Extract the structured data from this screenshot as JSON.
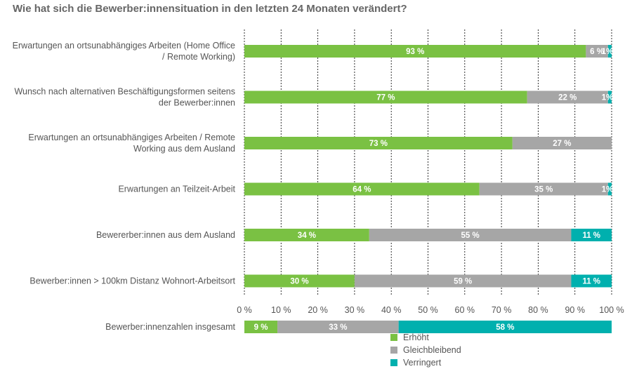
{
  "chart_data": {
    "type": "bar",
    "orientation": "horizontal",
    "stacked": true,
    "title": "Wie hat sich die Bewerber:innensituation in den letzten 24 Monaten verändert?",
    "categories": [
      [
        "Erwartungen an ortsunabhängiges Arbeiten (Home Office",
        "/ Remote Working)"
      ],
      [
        "Wunsch nach alternativen Beschäftigungsformen seitens",
        "der Bewerber:innen"
      ],
      [
        "Erwartungen an ortsunabhängiges Arbeiten / Remote",
        "Working aus dem Ausland"
      ],
      [
        "Erwartungen an Teilzeit-Arbeit"
      ],
      [
        "Bewererber:innen aus dem Ausland"
      ],
      [
        "Bewerber:innen > 100km Distanz Wohnort-Arbeitsort"
      ],
      [
        "Bewerber:innenzahlen insgesamt"
      ]
    ],
    "series": [
      {
        "name": "Erhöht",
        "color": "#7ac143",
        "values": [
          93,
          77,
          73,
          64,
          34,
          30,
          9
        ]
      },
      {
        "name": "Gleichbleibend",
        "color": "#a6a6a6",
        "values": [
          6,
          22,
          27,
          35,
          55,
          59,
          33
        ]
      },
      {
        "name": "Verringert",
        "color": "#00b0ae",
        "values": [
          1,
          1,
          0,
          1,
          11,
          11,
          58
        ]
      }
    ],
    "data_labels": [
      [
        "93 %",
        "6 %",
        "1%"
      ],
      [
        "77 %",
        "22 %",
        "1%"
      ],
      [
        "73 %",
        "27 %",
        ""
      ],
      [
        "64 %",
        "35 %",
        "1%"
      ],
      [
        "34 %",
        "55 %",
        "11 %"
      ],
      [
        "30 %",
        "59 %",
        "11 %"
      ],
      [
        "9 %",
        "33 %",
        "58 %"
      ]
    ],
    "xlim": [
      0,
      100
    ],
    "xticks": [
      "0 %",
      "10 %",
      "20 %",
      "30 %",
      "40 %",
      "50 %",
      "60 %",
      "70 %",
      "80 %",
      "90 %",
      "100 %"
    ],
    "grid": true,
    "legend_position": "bottom-center"
  }
}
